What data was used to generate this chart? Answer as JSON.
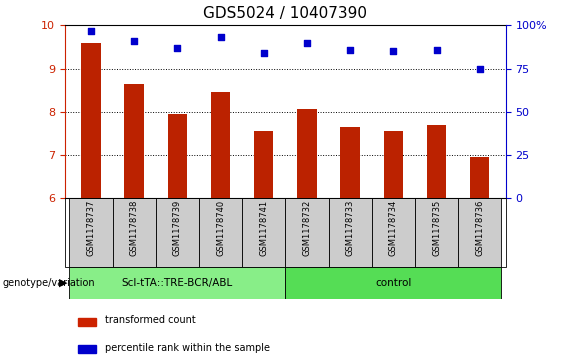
{
  "title": "GDS5024 / 10407390",
  "samples": [
    "GSM1178737",
    "GSM1178738",
    "GSM1178739",
    "GSM1178740",
    "GSM1178741",
    "GSM1178732",
    "GSM1178733",
    "GSM1178734",
    "GSM1178735",
    "GSM1178736"
  ],
  "bar_values": [
    9.6,
    8.65,
    7.95,
    8.45,
    7.55,
    8.05,
    7.65,
    7.55,
    7.7,
    6.95
  ],
  "percentile_values": [
    97,
    91,
    87,
    93,
    84,
    90,
    86,
    85,
    86,
    75
  ],
  "bar_color": "#bb2200",
  "dot_color": "#0000cc",
  "ylim_left": [
    6,
    10
  ],
  "ylim_right": [
    0,
    100
  ],
  "yticks_left": [
    6,
    7,
    8,
    9,
    10
  ],
  "yticks_right": [
    0,
    25,
    50,
    75,
    100
  ],
  "group1_label": "Scl-tTA::TRE-BCR/ABL",
  "group2_label": "control",
  "group1_count": 5,
  "group2_count": 5,
  "group1_color": "#88ee88",
  "group2_color": "#55dd55",
  "xlabel_genotype": "genotype/variation",
  "legend_bar": "transformed count",
  "legend_dot": "percentile rank within the sample",
  "bar_color_legend": "#cc2200",
  "dot_color_legend": "#0000cc",
  "tick_label_color_left": "#cc2200",
  "tick_label_color_right": "#0000cc",
  "title_fontsize": 11,
  "box_color": "#cccccc"
}
